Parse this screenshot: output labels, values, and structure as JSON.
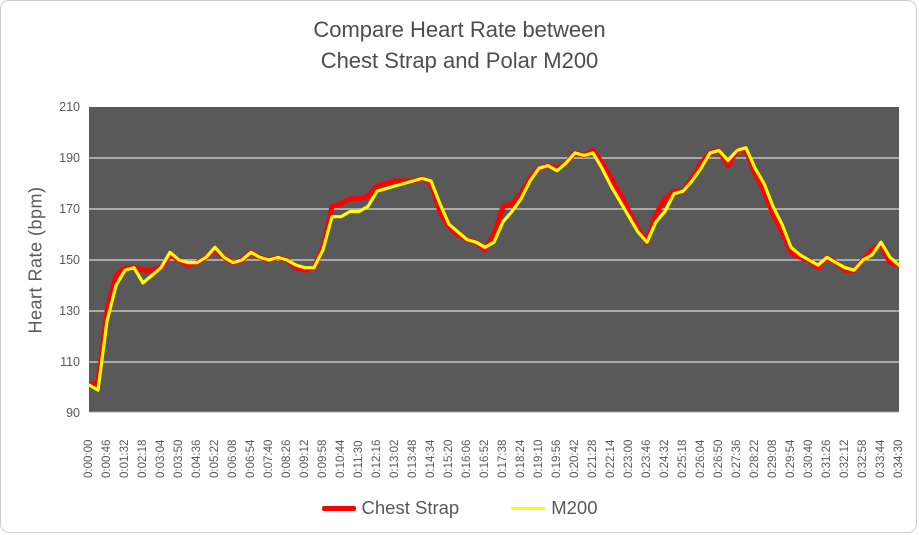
{
  "chart_data": {
    "type": "line",
    "title_line1": "Compare Heart Rate between",
    "title_line2": "Chest Strap and Polar M200",
    "ylabel": "Heart Rate  (bpm)",
    "ylim": [
      90,
      210
    ],
    "y_ticks": [
      210,
      190,
      170,
      150,
      130,
      110,
      90
    ],
    "y_gridlines": [
      190,
      170,
      150,
      130,
      110,
      90
    ],
    "grid": "horizontal-only",
    "legend_position": "bottom",
    "plot_bg": "#595959",
    "grid_color": "#d9d9d9",
    "axis_text_color": "#595959",
    "sample_interval_seconds": 23,
    "x_tick_labels": [
      "0:00:00",
      "0:00:46",
      "0:01:32",
      "0:02:18",
      "0:03:04",
      "0:03:50",
      "0:04:36",
      "0:05:22",
      "0:06:08",
      "0:06:54",
      "0:07:40",
      "0:08:26",
      "0:09:12",
      "0:09:58",
      "0:10:44",
      "0:11:30",
      "0:12:16",
      "0:13:02",
      "0:13:48",
      "0:14:34",
      "0:15:20",
      "0:16:06",
      "0:16:52",
      "0:17:38",
      "0:18:24",
      "0:19:10",
      "0:19:56",
      "0:20:42",
      "0:21:28",
      "0:22:14",
      "0:23:00",
      "0:23:46",
      "0:24:32",
      "0:25:18",
      "0:26:04",
      "0:26:50",
      "0:27:36",
      "0:28:22",
      "0:29:08",
      "0:29:54",
      "0:30:40",
      "0:31:26",
      "0:32:12",
      "0:32:58",
      "0:33:44",
      "0:34:30"
    ],
    "series": [
      {
        "name": "Chest Strap",
        "color": "#ff0000",
        "stroke_width": 5,
        "legend_swatch": {
          "width": 34,
          "height": 5
        },
        "values": [
          101,
          102,
          130,
          144,
          147,
          147,
          146,
          146,
          147,
          152,
          150,
          148,
          149,
          151,
          154,
          151,
          149,
          150,
          153,
          151,
          150,
          151,
          150,
          147,
          146,
          147,
          155,
          171,
          172,
          174,
          174,
          175,
          179,
          180,
          181,
          181,
          181,
          182,
          180,
          169,
          163,
          160,
          158,
          157,
          154,
          160,
          171,
          172,
          176,
          182,
          186,
          187,
          186,
          188,
          192,
          191,
          193,
          188,
          182,
          176,
          169,
          162,
          157,
          168,
          174,
          177,
          177,
          182,
          188,
          192,
          193,
          187,
          193,
          193,
          184,
          177,
          168,
          161,
          153,
          151,
          150,
          147,
          151,
          149,
          146,
          146,
          150,
          154,
          156,
          149,
          148
        ]
      },
      {
        "name": "M200",
        "color": "#ffff00",
        "stroke_width": 3.2,
        "legend_swatch": {
          "width": 34,
          "height": 3
        },
        "values": [
          101,
          99,
          126,
          140,
          146,
          147,
          141,
          144,
          147,
          153,
          150,
          149,
          149,
          151,
          155,
          151,
          149,
          150,
          153,
          151,
          150,
          151,
          150,
          148,
          147,
          147,
          154,
          167,
          167,
          169,
          169,
          171,
          177,
          178,
          179,
          180,
          181,
          182,
          181,
          172,
          164,
          161,
          158,
          157,
          155,
          157,
          165,
          169,
          174,
          181,
          186,
          187,
          185,
          188,
          192,
          191,
          192,
          186,
          179,
          173,
          167,
          161,
          157,
          165,
          169,
          176,
          177,
          181,
          186,
          192,
          193,
          189,
          193,
          194,
          186,
          180,
          171,
          164,
          155,
          152,
          150,
          148,
          151,
          149,
          147,
          146,
          150,
          152,
          157,
          151,
          148
        ]
      }
    ]
  }
}
